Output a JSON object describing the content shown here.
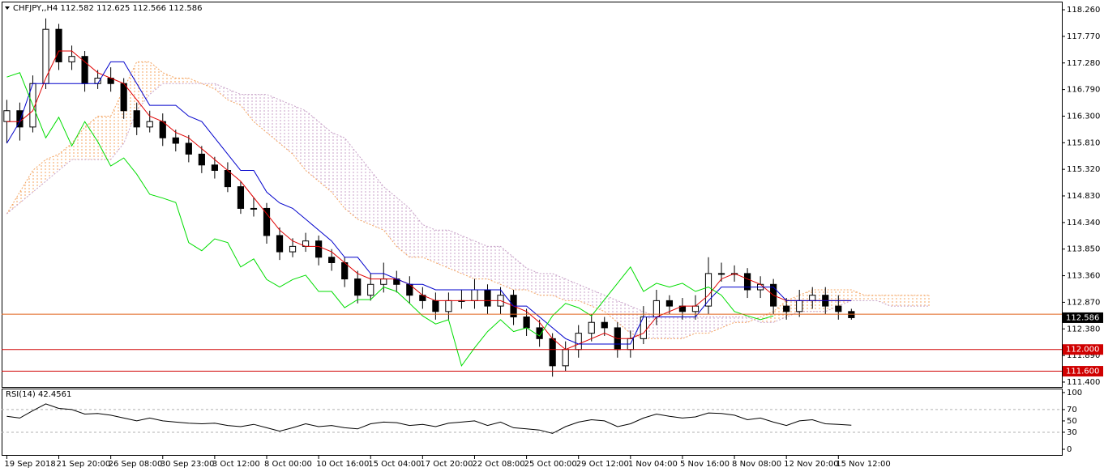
{
  "chart_data": [
    {
      "type": "candlestick",
      "title": "CHFJPY,,H4  112.582 112.625 112.566 112.586",
      "xlim": [
        -0.4,
        81.2
      ],
      "ylim": [
        111.31,
        118.41
      ],
      "yticks": [
        {
          "value": 118.26,
          "label": "118.260"
        },
        {
          "value": 117.77,
          "label": "117.770"
        },
        {
          "value": 117.28,
          "label": "117.280"
        },
        {
          "value": 116.79,
          "label": "116.790"
        },
        {
          "value": 116.3,
          "label": "116.300"
        },
        {
          "value": 115.81,
          "label": "115.810"
        },
        {
          "value": 115.32,
          "label": "115.320"
        },
        {
          "value": 114.83,
          "label": "114.830"
        },
        {
          "value": 114.34,
          "label": "114.340"
        },
        {
          "value": 113.85,
          "label": "113.850"
        },
        {
          "value": 113.36,
          "label": "113.360"
        },
        {
          "value": 112.87,
          "label": "112.870"
        },
        {
          "value": 112.38,
          "label": "112.380"
        },
        {
          "value": 111.89,
          "label": "111.890"
        },
        {
          "value": 111.4,
          "label": "111.400"
        }
      ],
      "open": [
        116.2,
        116.4,
        116.1,
        116.9,
        117.9,
        117.3,
        117.4,
        116.9,
        117.0,
        116.9,
        116.4,
        116.1,
        116.2,
        115.9,
        115.8,
        115.6,
        115.4,
        115.3,
        115.0,
        114.6,
        114.6,
        114.1,
        113.8,
        113.9,
        114.0,
        113.7,
        113.6,
        113.3,
        113.0,
        113.2,
        113.3,
        113.2,
        113.0,
        112.9,
        112.7,
        112.9,
        112.9,
        113.1,
        112.8,
        113.0,
        112.6,
        112.4,
        112.2,
        111.7,
        112.0,
        112.3,
        112.5,
        112.4,
        112.0,
        112.2,
        112.6,
        112.9,
        112.8,
        112.7,
        112.8,
        113.4,
        113.4,
        113.4,
        113.1,
        113.2,
        112.8,
        112.7,
        112.9,
        113.0,
        112.8,
        112.7
      ],
      "high": [
        116.6,
        116.55,
        117.05,
        118.1,
        118.0,
        117.6,
        117.5,
        117.15,
        117.2,
        117.0,
        116.55,
        116.4,
        116.35,
        116.05,
        115.95,
        115.75,
        115.55,
        115.45,
        115.1,
        114.8,
        114.7,
        114.25,
        114.05,
        114.15,
        114.1,
        113.85,
        113.7,
        113.45,
        113.4,
        113.6,
        113.45,
        113.35,
        113.15,
        113.05,
        113.05,
        113.1,
        113.3,
        113.2,
        113.15,
        113.1,
        112.75,
        112.55,
        112.3,
        112.15,
        112.45,
        112.65,
        112.6,
        112.5,
        112.35,
        112.8,
        113.1,
        113.0,
        112.95,
        113.0,
        113.7,
        113.6,
        113.55,
        113.5,
        113.35,
        113.3,
        112.95,
        113.1,
        113.15,
        113.15,
        113.0,
        112.75
      ],
      "low": [
        115.8,
        115.85,
        116.0,
        116.8,
        117.15,
        117.15,
        116.75,
        116.8,
        116.75,
        116.25,
        115.95,
        116.0,
        115.75,
        115.65,
        115.45,
        115.25,
        115.15,
        114.9,
        114.5,
        114.45,
        113.95,
        113.65,
        113.7,
        113.8,
        113.55,
        113.45,
        113.15,
        112.85,
        112.9,
        113.05,
        113.05,
        112.85,
        112.75,
        112.55,
        112.55,
        112.75,
        112.75,
        112.65,
        112.65,
        112.45,
        112.25,
        112.05,
        111.5,
        111.6,
        111.85,
        112.15,
        112.25,
        111.85,
        111.85,
        112.1,
        112.45,
        112.65,
        112.55,
        112.55,
        112.65,
        113.25,
        113.25,
        112.95,
        112.95,
        112.65,
        112.55,
        112.6,
        112.75,
        112.65,
        112.55,
        112.55
      ],
      "close": [
        116.4,
        116.1,
        116.9,
        117.9,
        117.3,
        117.4,
        116.9,
        117.0,
        116.9,
        116.4,
        116.1,
        116.2,
        115.9,
        115.8,
        115.6,
        115.4,
        115.3,
        115.0,
        114.6,
        114.6,
        114.1,
        113.8,
        113.9,
        114.0,
        113.7,
        113.6,
        113.3,
        113.0,
        113.2,
        113.3,
        113.2,
        113.0,
        112.9,
        112.7,
        112.9,
        112.9,
        113.1,
        112.8,
        113.0,
        112.6,
        112.4,
        112.2,
        111.7,
        112.0,
        112.3,
        112.5,
        112.4,
        112.0,
        112.2,
        112.6,
        112.9,
        112.8,
        112.7,
        112.8,
        113.4,
        113.4,
        113.4,
        113.1,
        113.2,
        112.8,
        112.7,
        112.9,
        113.0,
        112.8,
        112.7,
        112.586
      ],
      "series": [
        {
          "color": "#e00000",
          "values": [
            116.2,
            116.2,
            116.4,
            117.0,
            117.5,
            117.5,
            117.3,
            117.1,
            117.0,
            116.9,
            116.6,
            116.3,
            116.2,
            116.0,
            115.9,
            115.7,
            115.5,
            115.3,
            115.1,
            114.8,
            114.5,
            114.2,
            114.0,
            113.9,
            113.9,
            113.8,
            113.6,
            113.4,
            113.3,
            113.3,
            113.3,
            113.2,
            113.0,
            112.9,
            112.9,
            112.9,
            112.9,
            112.9,
            112.9,
            112.8,
            112.7,
            112.5,
            112.2,
            112.0,
            112.1,
            112.2,
            112.3,
            112.2,
            112.2,
            112.3,
            112.6,
            112.7,
            112.8,
            112.8,
            113.0,
            113.3,
            113.4,
            113.3,
            113.2,
            113.0,
            112.9,
            112.9,
            112.9,
            112.9,
            112.9,
            112.9
          ]
        },
        {
          "color": "#0000cc",
          "values": [
            115.8,
            116.2,
            116.9,
            116.9,
            116.9,
            116.9,
            116.9,
            116.9,
            117.3,
            117.3,
            116.9,
            116.5,
            116.5,
            116.5,
            116.3,
            116.2,
            115.9,
            115.6,
            115.3,
            115.3,
            114.9,
            114.7,
            114.6,
            114.4,
            114.2,
            114.0,
            113.7,
            113.7,
            113.4,
            113.4,
            113.3,
            113.2,
            113.2,
            113.1,
            113.1,
            113.1,
            113.1,
            113.1,
            113.1,
            112.8,
            112.8,
            112.6,
            112.4,
            112.2,
            112.1,
            112.1,
            112.1,
            112.1,
            112.1,
            112.6,
            112.6,
            112.6,
            112.6,
            112.6,
            112.9,
            113.15,
            113.15,
            113.15,
            113.15,
            113.15,
            112.9,
            112.9,
            112.9,
            112.9,
            112.9,
            112.9
          ]
        },
        {
          "color": "#00dd00",
          "values": [
            117.02,
            117.1,
            116.5,
            115.9,
            116.28,
            115.75,
            116.2,
            115.83,
            115.38,
            115.53,
            115.23,
            114.86,
            114.79,
            114.71,
            113.97,
            113.82,
            114.04,
            113.97,
            113.52,
            113.67,
            113.29,
            113.15,
            113.29,
            113.37,
            113.07,
            113.07,
            112.77,
            112.92,
            112.92,
            113.15,
            113.07,
            112.85,
            112.62,
            112.47,
            112.55,
            111.7,
            112.03,
            112.33,
            112.55,
            112.33,
            112.4,
            112.25,
            112.62,
            112.85,
            112.77,
            112.62,
            112.92,
            113.22,
            113.52,
            113.07,
            113.22,
            113.15,
            113.22,
            113.07,
            113.15,
            113.0,
            112.7,
            112.62,
            112.55,
            112.62,
            null,
            null,
            null,
            null,
            null,
            null
          ]
        }
      ],
      "cloud": {
        "up_color": "#f4a460",
        "down_color": "#c8a2c8",
        "span_a": [
          114.5,
          114.9,
          115.3,
          115.5,
          115.6,
          115.8,
          116.1,
          116.3,
          116.3,
          116.8,
          117.3,
          117.3,
          117.1,
          117.0,
          117.0,
          116.9,
          116.8,
          116.6,
          116.5,
          116.2,
          116.0,
          115.8,
          115.6,
          115.3,
          115.1,
          114.9,
          114.6,
          114.4,
          114.3,
          114.2,
          113.9,
          113.7,
          113.7,
          113.6,
          113.5,
          113.4,
          113.3,
          113.3,
          113.2,
          113.1,
          113.1,
          113.0,
          113.0,
          112.9,
          112.9,
          112.8,
          112.7,
          112.5,
          112.3,
          112.2,
          112.2,
          112.2,
          112.2,
          112.3,
          112.3,
          112.4,
          112.5,
          112.5,
          112.6,
          112.7,
          112.9,
          113.0,
          113.1,
          113.1,
          113.1,
          113.1,
          113.0,
          113.0,
          113.0,
          113.0,
          113.0,
          113.0
        ],
        "span_b": [
          114.5,
          114.7,
          114.9,
          115.1,
          115.3,
          115.5,
          115.5,
          115.5,
          115.5,
          115.8,
          116.4,
          116.7,
          116.9,
          116.9,
          116.9,
          116.9,
          116.9,
          116.8,
          116.7,
          116.7,
          116.7,
          116.6,
          116.5,
          116.4,
          116.2,
          116.0,
          115.9,
          115.6,
          115.3,
          115.0,
          114.8,
          114.6,
          114.3,
          114.2,
          114.2,
          114.1,
          114.0,
          113.9,
          113.9,
          113.7,
          113.5,
          113.4,
          113.4,
          113.3,
          113.2,
          113.1,
          113.0,
          112.9,
          112.8,
          112.7,
          112.6,
          112.6,
          112.6,
          112.6,
          112.6,
          112.6,
          112.6,
          112.6,
          112.5,
          112.5,
          112.6,
          112.7,
          112.7,
          112.7,
          112.8,
          112.9,
          112.9,
          112.9,
          112.8,
          112.8,
          112.8,
          112.8
        ]
      },
      "levels": [
        {
          "value": 112.0,
          "label": "112.000",
          "color": "#d00000"
        },
        {
          "value": 111.6,
          "label": "111.600",
          "color": "#d00000"
        },
        {
          "value": 112.65,
          "color": "#e0641e"
        }
      ],
      "last": {
        "value": 112.586,
        "label": "112.586"
      }
    },
    {
      "type": "line",
      "title": "RSI(14) 42.4561",
      "xlim": [
        -0.4,
        81.2
      ],
      "ylim": [
        -10,
        107
      ],
      "yticks": [
        100,
        70,
        50,
        30,
        0
      ],
      "levels": [
        70,
        30
      ],
      "xticks": [
        {
          "value": 0,
          "label": "19 Sep 2018"
        },
        {
          "value": 4,
          "label": "21 Sep 20:00"
        },
        {
          "value": 8,
          "label": "26 Sep 08:00"
        },
        {
          "value": 12,
          "label": "30 Sep 23:00"
        },
        {
          "value": 16,
          "label": "3 Oct 12:00"
        },
        {
          "value": 20,
          "label": "8 Oct 00:00"
        },
        {
          "value": 24,
          "label": "10 Oct 16:00"
        },
        {
          "value": 28,
          "label": "15 Oct 04:00"
        },
        {
          "value": 32,
          "label": "17 Oct 20:00"
        },
        {
          "value": 36,
          "label": "22 Oct 08:00"
        },
        {
          "value": 40,
          "label": "25 Oct 00:00"
        },
        {
          "value": 44,
          "label": "29 Oct 12:00"
        },
        {
          "value": 48,
          "label": "1 Nov 04:00"
        },
        {
          "value": 52,
          "label": "5 Nov 16:00"
        },
        {
          "value": 56,
          "label": "8 Nov 08:00"
        },
        {
          "value": 60,
          "label": "12 Nov 20:00"
        },
        {
          "value": 64,
          "label": "15 Nov 12:00"
        }
      ],
      "series": [
        {
          "color": "#000000",
          "values": [
            58,
            55,
            68,
            80,
            72,
            70,
            62,
            63,
            60,
            55,
            50,
            55,
            50,
            48,
            46,
            45,
            46,
            42,
            40,
            44,
            38,
            32,
            38,
            45,
            40,
            42,
            38,
            36,
            45,
            48,
            47,
            42,
            44,
            40,
            46,
            48,
            50,
            42,
            48,
            38,
            36,
            34,
            28,
            40,
            48,
            52,
            50,
            40,
            45,
            55,
            62,
            58,
            55,
            57,
            64,
            63,
            60,
            52,
            55,
            48,
            42,
            50,
            52,
            45,
            44,
            42.4561
          ]
        }
      ]
    }
  ]
}
